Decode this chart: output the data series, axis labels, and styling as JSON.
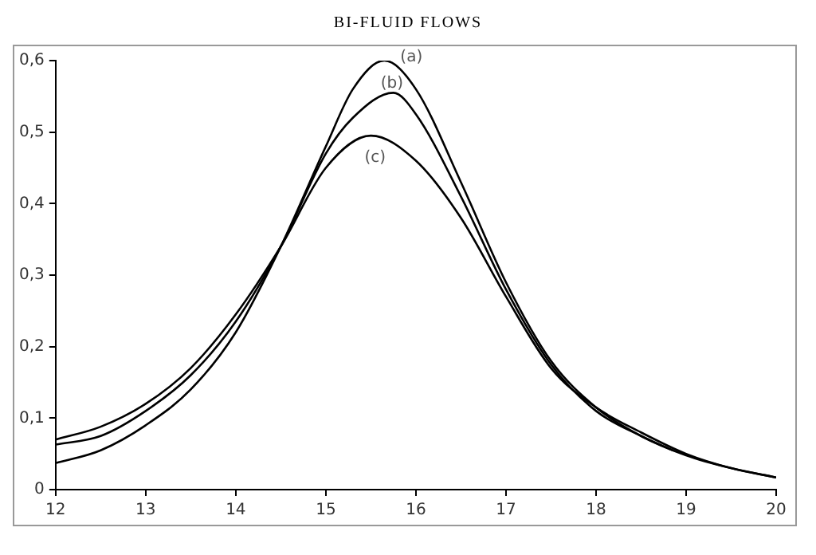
{
  "chart_data": {
    "type": "line",
    "title": "BI-FLUID FLOWS",
    "xlim": [
      12,
      20
    ],
    "xticks": [
      12,
      13,
      14,
      15,
      16,
      17,
      18,
      19,
      20
    ],
    "ylim": [
      0,
      0.6
    ],
    "yticks": [
      {
        "value": 0,
        "label": "0"
      },
      {
        "value": 0.1,
        "label": "0,1"
      },
      {
        "value": 0.2,
        "label": "0,2"
      },
      {
        "value": 0.3,
        "label": "0,3"
      },
      {
        "value": 0.4,
        "label": "0,4"
      },
      {
        "value": 0.5,
        "label": "0,5"
      },
      {
        "value": 0.6,
        "label": "0,6"
      }
    ],
    "grid": false,
    "legend": false,
    "marker": "none",
    "line_style": "solid",
    "series": [
      {
        "name": "(a)",
        "color": "#000000",
        "x": [
          12,
          12.5,
          13,
          13.5,
          14,
          14.5,
          15,
          15.3,
          15.65,
          16,
          16.5,
          17,
          17.5,
          18,
          18.5,
          19,
          19.5,
          20
        ],
        "values": [
          0.037,
          0.055,
          0.09,
          0.14,
          0.22,
          0.34,
          0.48,
          0.56,
          0.6,
          0.56,
          0.43,
          0.29,
          0.18,
          0.115,
          0.075,
          0.048,
          0.03,
          0.017
        ]
      },
      {
        "name": "(b)",
        "color": "#000000",
        "x": [
          12,
          12.5,
          13,
          13.5,
          14,
          14.5,
          15,
          15.3,
          15.75,
          16,
          16.5,
          17,
          17.5,
          18,
          18.5,
          18.85
        ],
        "values": [
          0.063,
          0.075,
          0.11,
          0.16,
          0.235,
          0.34,
          0.47,
          0.52,
          0.555,
          0.525,
          0.41,
          0.28,
          0.175,
          0.11,
          0.075,
          0.055
        ]
      },
      {
        "name": "(c)",
        "color": "#000000",
        "x": [
          12,
          12.5,
          13,
          13.5,
          14,
          14.5,
          15,
          15.5,
          16,
          16.5,
          17,
          17.5,
          18,
          18.5,
          19,
          19.5,
          20
        ],
        "values": [
          0.07,
          0.088,
          0.12,
          0.17,
          0.245,
          0.34,
          0.45,
          0.495,
          0.46,
          0.38,
          0.27,
          0.17,
          0.115,
          0.08,
          0.05,
          0.03,
          0.017
        ]
      }
    ]
  }
}
